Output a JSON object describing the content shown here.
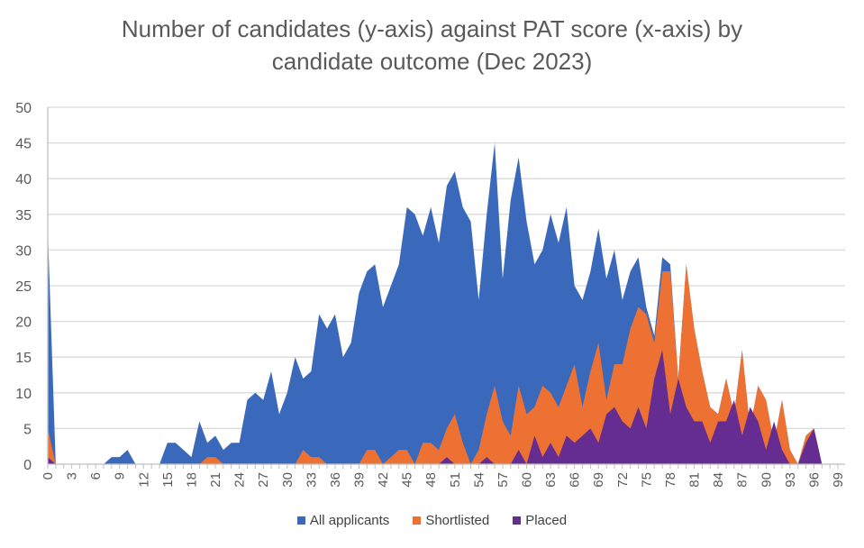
{
  "chart_data": {
    "type": "area",
    "title": "Number of candidates (y-axis) against PAT score (x-axis) by candidate outcome (Dec 2023)",
    "title_lines": [
      "Number of candidates (y-axis) against PAT score (x-axis) by",
      "candidate outcome (Dec 2023)"
    ],
    "xlabel": "",
    "ylabel": "",
    "ylim": [
      0,
      50
    ],
    "yticks": [
      0,
      5,
      10,
      15,
      20,
      25,
      30,
      35,
      40,
      45,
      50
    ],
    "xlim": [
      0,
      99
    ],
    "xtick_step": 3,
    "grid": true,
    "legend_position": "bottom",
    "x": [
      0,
      1,
      2,
      3,
      4,
      5,
      6,
      7,
      8,
      9,
      10,
      11,
      12,
      13,
      14,
      15,
      16,
      17,
      18,
      19,
      20,
      21,
      22,
      23,
      24,
      25,
      26,
      27,
      28,
      29,
      30,
      31,
      32,
      33,
      34,
      35,
      36,
      37,
      38,
      39,
      40,
      41,
      42,
      43,
      44,
      45,
      46,
      47,
      48,
      49,
      50,
      51,
      52,
      53,
      54,
      55,
      56,
      57,
      58,
      59,
      60,
      61,
      62,
      63,
      64,
      65,
      66,
      67,
      68,
      69,
      70,
      71,
      72,
      73,
      74,
      75,
      76,
      77,
      78,
      79,
      80,
      81,
      82,
      83,
      84,
      85,
      86,
      87,
      88,
      89,
      90,
      91,
      92,
      93,
      94,
      95,
      96,
      97,
      98,
      99
    ],
    "series": [
      {
        "name": "All applicants",
        "color": "#3A69BB",
        "values": [
          33,
          0,
          0,
          0,
          0,
          0,
          0,
          0,
          1,
          1,
          2,
          0,
          0,
          0,
          0,
          3,
          3,
          2,
          1,
          6,
          3,
          4,
          2,
          3,
          3,
          9,
          10,
          9,
          13,
          7,
          10,
          15,
          12,
          13,
          21,
          19,
          21,
          15,
          17,
          24,
          27,
          28,
          22,
          25,
          28,
          36,
          35,
          32,
          36,
          31,
          39,
          41,
          36,
          34,
          23,
          35,
          45,
          26,
          37,
          43,
          34,
          28,
          30,
          35,
          31,
          36,
          25,
          23,
          27,
          33,
          26,
          30,
          23,
          27,
          29,
          22,
          18,
          29,
          28,
          12,
          28,
          19,
          13,
          8,
          7,
          12,
          7,
          16,
          5,
          11,
          9,
          3,
          9,
          2,
          0,
          4,
          5,
          0,
          0,
          0
        ]
      },
      {
        "name": "Shortlisted",
        "color": "#ED7132",
        "values": [
          5,
          0,
          0,
          0,
          0,
          0,
          0,
          0,
          0,
          0,
          0,
          0,
          0,
          0,
          0,
          0,
          0,
          0,
          0,
          0,
          1,
          1,
          0,
          0,
          0,
          0,
          0,
          0,
          0,
          0,
          0,
          0,
          2,
          1,
          1,
          0,
          0,
          0,
          0,
          0,
          2,
          2,
          0,
          1,
          2,
          2,
          0,
          3,
          3,
          2,
          5,
          7,
          3,
          0,
          2,
          7,
          11,
          6,
          4,
          11,
          7,
          8,
          11,
          10,
          8,
          11,
          14,
          8,
          13,
          17,
          9,
          14,
          14,
          19,
          22,
          21,
          17,
          27,
          27,
          12,
          28,
          19,
          13,
          8,
          7,
          12,
          7,
          16,
          5,
          11,
          9,
          3,
          9,
          2,
          0,
          4,
          5,
          0,
          0,
          0
        ]
      },
      {
        "name": "Placed",
        "color": "#652C91",
        "values": [
          1,
          0,
          0,
          0,
          0,
          0,
          0,
          0,
          0,
          0,
          0,
          0,
          0,
          0,
          0,
          0,
          0,
          0,
          0,
          0,
          0,
          0,
          0,
          0,
          0,
          0,
          0,
          0,
          0,
          0,
          0,
          0,
          0,
          0,
          0,
          0,
          0,
          0,
          0,
          0,
          0,
          0,
          0,
          0,
          0,
          0,
          0,
          0,
          0,
          0,
          1,
          0,
          0,
          0,
          0,
          1,
          0,
          0,
          0,
          2,
          0,
          4,
          1,
          3,
          1,
          4,
          3,
          4,
          5,
          3,
          7,
          8,
          6,
          5,
          8,
          5,
          12,
          16,
          7,
          12,
          8,
          6,
          6,
          3,
          6,
          6,
          9,
          4,
          8,
          6,
          2,
          6,
          2,
          0,
          0,
          3,
          5,
          0,
          0,
          0
        ]
      }
    ]
  },
  "legend": {
    "items": [
      {
        "label": "All applicants",
        "color": "#3A69BB"
      },
      {
        "label": "Shortlisted",
        "color": "#ED7132"
      },
      {
        "label": "Placed",
        "color": "#652C91"
      }
    ]
  }
}
